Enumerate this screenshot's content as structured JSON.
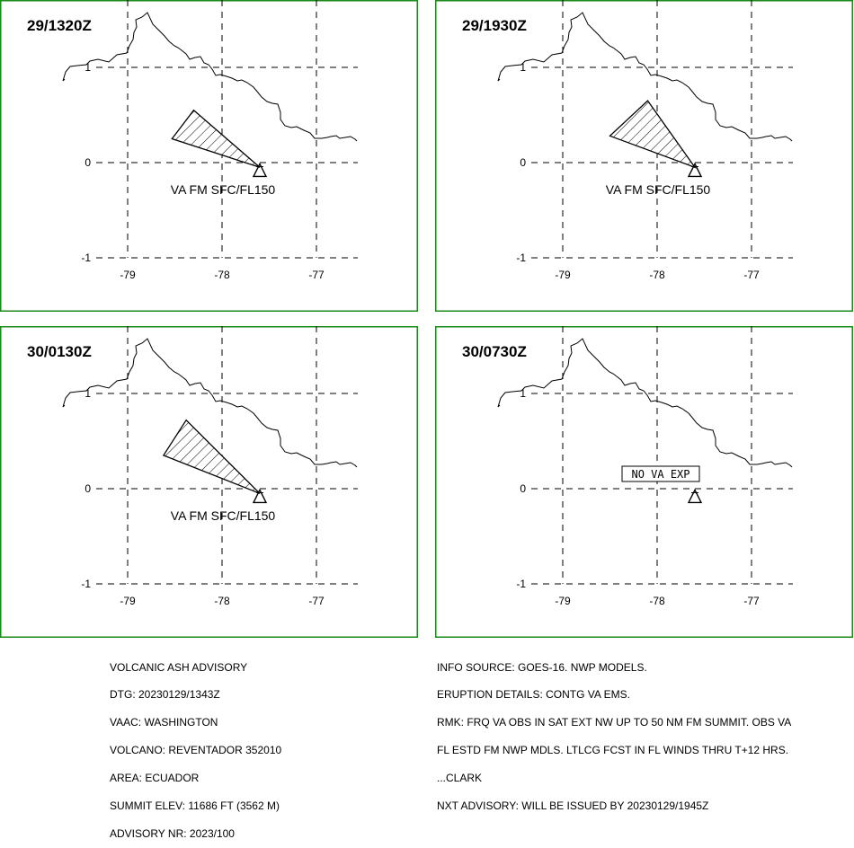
{
  "panels": [
    {
      "time": "29/1320Z",
      "label": "VA FM SFC/FL150",
      "plume": [
        [
          -78.3,
          0.55
        ],
        [
          -78.53,
          0.25
        ],
        [
          -77.6,
          -0.05
        ]
      ],
      "no_va": null
    },
    {
      "time": "29/1930Z",
      "label": "VA FM SFC/FL150",
      "plume": [
        [
          -78.1,
          0.65
        ],
        [
          -78.5,
          0.28
        ],
        [
          -77.6,
          -0.05
        ]
      ],
      "no_va": null
    },
    {
      "time": "30/0130Z",
      "label": "VA FM SFC/FL150",
      "plume": [
        [
          -78.38,
          0.72
        ],
        [
          -78.62,
          0.35
        ],
        [
          -77.6,
          -0.05
        ]
      ],
      "no_va": null
    },
    {
      "time": "30/0730Z",
      "label": "",
      "plume": null,
      "no_va": "NO VA EXP"
    }
  ],
  "axes": {
    "x_ticks": [
      -79,
      -78,
      -77
    ],
    "y_ticks": [
      1,
      0,
      -1
    ],
    "x_tick_labels": [
      "-79",
      "-78",
      "-77"
    ],
    "y_tick_labels": [
      "1",
      "0",
      "-1"
    ],
    "xlim": [
      -79.55,
      -76.6
    ],
    "ylim": [
      -1.05,
      1.7
    ]
  },
  "volcano": {
    "lon": -77.6,
    "lat": -0.08,
    "symbol": "triangle"
  },
  "advisory_left": [
    "VOLCANIC ASH ADVISORY",
    "DTG: 20230129/1343Z",
    "VAAC: WASHINGTON",
    "VOLCANO: REVENTADOR 352010",
    "AREA: ECUADOR",
    "SUMMIT ELEV: 11686 FT (3562 M)",
    "ADVISORY NR: 2023/100"
  ],
  "advisory_right": [
    "INFO SOURCE: GOES-16. NWP MODELS.",
    "ERUPTION DETAILS: CONTG VA EMS.",
    "RMK: FRQ VA OBS IN SAT EXT NW UP TO 50 NM FM SUMMIT. OBS VA",
    "FL ESTD FM NWP MDLS. LTLCG FCST IN FL WINDS THRU T+12 HRS.",
    "...CLARK",
    "NXT ADVISORY: WILL BE ISSUED BY 20230129/1945Z"
  ],
  "colors": {
    "frame": "#1a8a1a",
    "ink": "#000000",
    "background": "#ffffff"
  }
}
